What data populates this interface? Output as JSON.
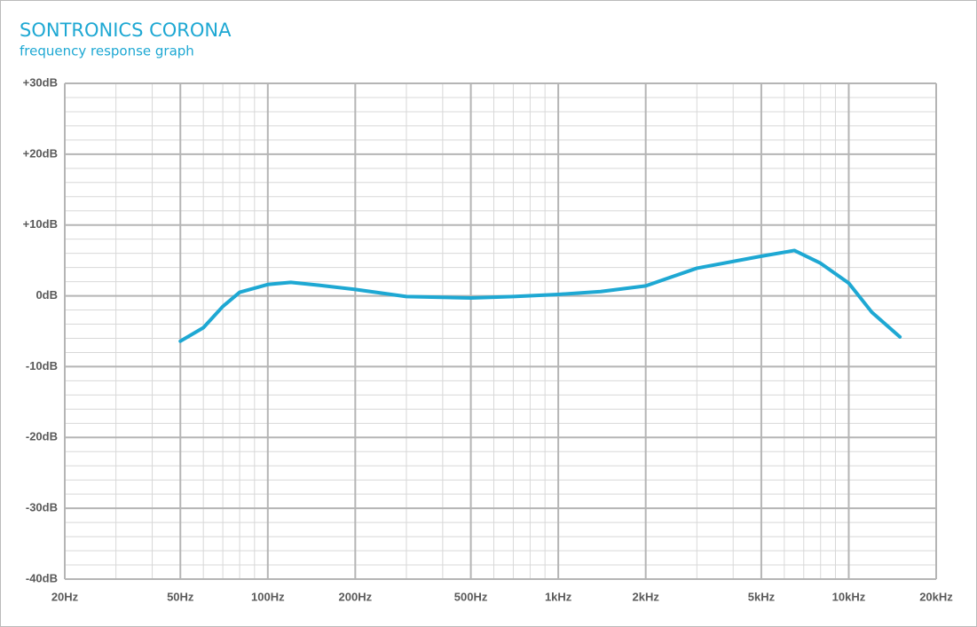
{
  "chart_data": {
    "type": "line",
    "title": "SONTRONICS CORONA",
    "subtitle": "frequency response graph",
    "x": [
      50,
      60,
      70,
      80,
      100,
      120,
      150,
      200,
      300,
      500,
      700,
      1000,
      1400,
      2000,
      3000,
      5000,
      6500,
      8000,
      10000,
      12000,
      15000
    ],
    "series": [
      {
        "name": "Corona",
        "color": "#1ea8d3",
        "values": [
          -6.4,
          -4.5,
          -1.5,
          0.5,
          1.6,
          1.9,
          1.5,
          0.9,
          -0.1,
          -0.3,
          -0.1,
          0.2,
          0.6,
          1.4,
          3.9,
          5.6,
          6.4,
          4.6,
          1.8,
          -2.3,
          -5.8
        ]
      }
    ],
    "xscale": "log",
    "xlim": [
      20,
      20000
    ],
    "xticks": [
      {
        "value": 20,
        "label": "20Hz"
      },
      {
        "value": 50,
        "label": "50Hz"
      },
      {
        "value": 100,
        "label": "100Hz"
      },
      {
        "value": 200,
        "label": "200Hz"
      },
      {
        "value": 500,
        "label": "500Hz"
      },
      {
        "value": 1000,
        "label": "1kHz"
      },
      {
        "value": 2000,
        "label": "2kHz"
      },
      {
        "value": 5000,
        "label": "5kHz"
      },
      {
        "value": 10000,
        "label": "10kHz"
      },
      {
        "value": 20000,
        "label": "20kHz"
      }
    ],
    "ylim": [
      -40,
      30
    ],
    "yticks": [
      {
        "value": -40,
        "label": "-40dB"
      },
      {
        "value": -30,
        "label": "-30dB"
      },
      {
        "value": -20,
        "label": "-20dB"
      },
      {
        "value": -10,
        "label": "-10dB"
      },
      {
        "value": 0,
        "label": "0dB"
      },
      {
        "value": 10,
        "label": "+10dB"
      },
      {
        "value": 20,
        "label": "+20dB"
      },
      {
        "value": 30,
        "label": "+30dB"
      }
    ],
    "grid": true,
    "minor_grid": true
  }
}
